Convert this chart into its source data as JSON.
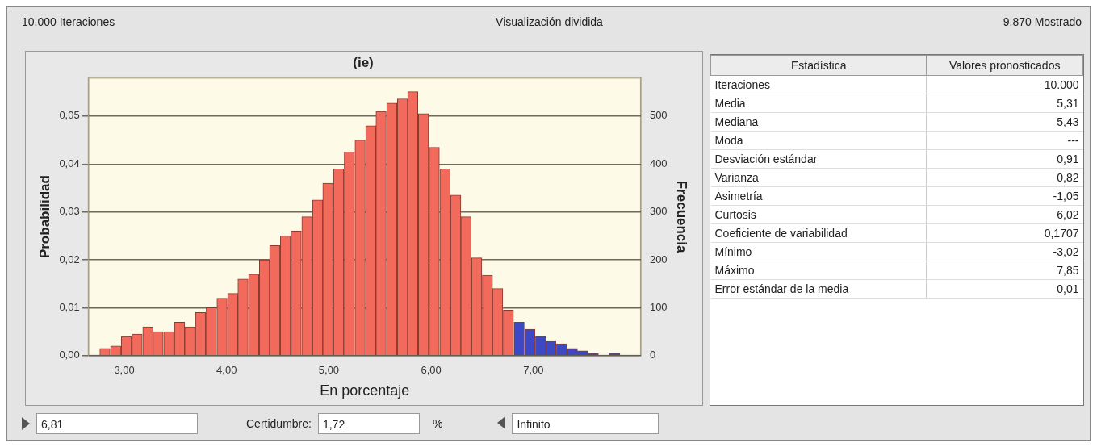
{
  "chart_data": [
    {
      "type": "histogram",
      "title": "(ie)",
      "xlabel": "En porcentaje",
      "ylabel": "Probabilidad",
      "y2label": "Frecuencia",
      "bins": [
        2.76,
        2.86,
        2.97,
        3.07,
        3.18,
        3.28,
        3.38,
        3.49,
        3.59,
        3.69,
        3.8,
        3.9,
        4.01,
        4.11,
        4.21,
        4.32,
        4.42,
        4.52,
        4.63,
        4.73,
        4.84,
        4.94,
        5.04,
        5.15,
        5.25,
        5.36,
        5.46,
        5.56,
        5.67,
        5.77,
        5.87,
        5.98,
        6.08,
        6.19,
        6.29,
        6.39,
        6.5,
        6.6,
        6.7,
        6.81,
        6.91,
        7.02,
        7.12,
        7.22,
        7.33,
        7.43,
        7.53,
        7.64,
        7.74,
        7.85
      ],
      "values": [
        0.0015,
        0.002,
        0.004,
        0.0045,
        0.006,
        0.005,
        0.005,
        0.007,
        0.006,
        0.009,
        0.01,
        0.012,
        0.013,
        0.016,
        0.017,
        0.02,
        0.023,
        0.025,
        0.026,
        0.029,
        0.0325,
        0.036,
        0.039,
        0.0425,
        0.045,
        0.048,
        0.051,
        0.0527,
        0.0536,
        0.0551,
        0.0505,
        0.0435,
        0.039,
        0.0335,
        0.029,
        0.0204,
        0.0168,
        0.014,
        0.0095,
        0.007,
        0.0055,
        0.004,
        0.003,
        0.0025,
        0.0015,
        0.001,
        0.0005,
        0,
        0.0005
      ],
      "colors": [
        "#f26a5c",
        "#f26a5c",
        "#f26a5c",
        "#f26a5c",
        "#f26a5c",
        "#f26a5c",
        "#f26a5c",
        "#f26a5c",
        "#f26a5c",
        "#f26a5c",
        "#f26a5c",
        "#f26a5c",
        "#f26a5c",
        "#f26a5c",
        "#f26a5c",
        "#f26a5c",
        "#f26a5c",
        "#f26a5c",
        "#f26a5c",
        "#f26a5c",
        "#f26a5c",
        "#f26a5c",
        "#f26a5c",
        "#f26a5c",
        "#f26a5c",
        "#f26a5c",
        "#f26a5c",
        "#f26a5c",
        "#f26a5c",
        "#f26a5c",
        "#f26a5c",
        "#f26a5c",
        "#f26a5c",
        "#f26a5c",
        "#f26a5c",
        "#f26a5c",
        "#f26a5c",
        "#f26a5c",
        "#f26a5c",
        "#3c48c4",
        "#3c48c4",
        "#3c48c4",
        "#3c48c4",
        "#3c48c4",
        "#3c48c4",
        "#3c48c4",
        "#3c48c4",
        "#3c48c4",
        "#3c48c4"
      ],
      "xlim": [
        2.65,
        8.05
      ],
      "xticks": [
        {
          "value": 3,
          "label": "3,00"
        },
        {
          "value": 4,
          "label": "4,00"
        },
        {
          "value": 5,
          "label": "5,00"
        },
        {
          "value": 6,
          "label": "6,00"
        },
        {
          "value": 7,
          "label": "7,00"
        }
      ],
      "ylim": [
        0,
        0.058
      ],
      "yticks": [
        {
          "value": 0,
          "label": "0,00"
        },
        {
          "value": 0.01,
          "label": "0,01"
        },
        {
          "value": 0.02,
          "label": "0,02"
        },
        {
          "value": 0.03,
          "label": "0,03"
        },
        {
          "value": 0.04,
          "label": "0,04"
        },
        {
          "value": 0.05,
          "label": "0,05"
        }
      ],
      "y2lim": [
        0,
        580
      ],
      "y2ticks": [
        0,
        100,
        200,
        300,
        400,
        500
      ],
      "grid": "y",
      "annotations": [
        "10.000 Iteraciones",
        "Visualización dividida",
        "9.870 Mostrado",
        "6,81",
        "Certidumbre:",
        "1,72",
        "%",
        "Infinito"
      ]
    },
    {
      "type": "other",
      "annotations": [
        "Estadística",
        "Valores pronosticados"
      ],
      "categories": [
        "Iteraciones",
        "Media",
        "Mediana",
        "Moda",
        "Desviación estándar",
        "Varianza",
        "Asimetría",
        "Curtosis",
        "Coeficiente de variabilidad",
        "Mínimo",
        "Máximo",
        "Error estándar de la media"
      ],
      "value_labels": [
        "10.000",
        "5,31",
        "5,43",
        "---",
        "0,91",
        "0,82",
        "-1,05",
        "6,02",
        "0,1707",
        "-3,02",
        "7,85",
        "0,01"
      ]
    }
  ]
}
